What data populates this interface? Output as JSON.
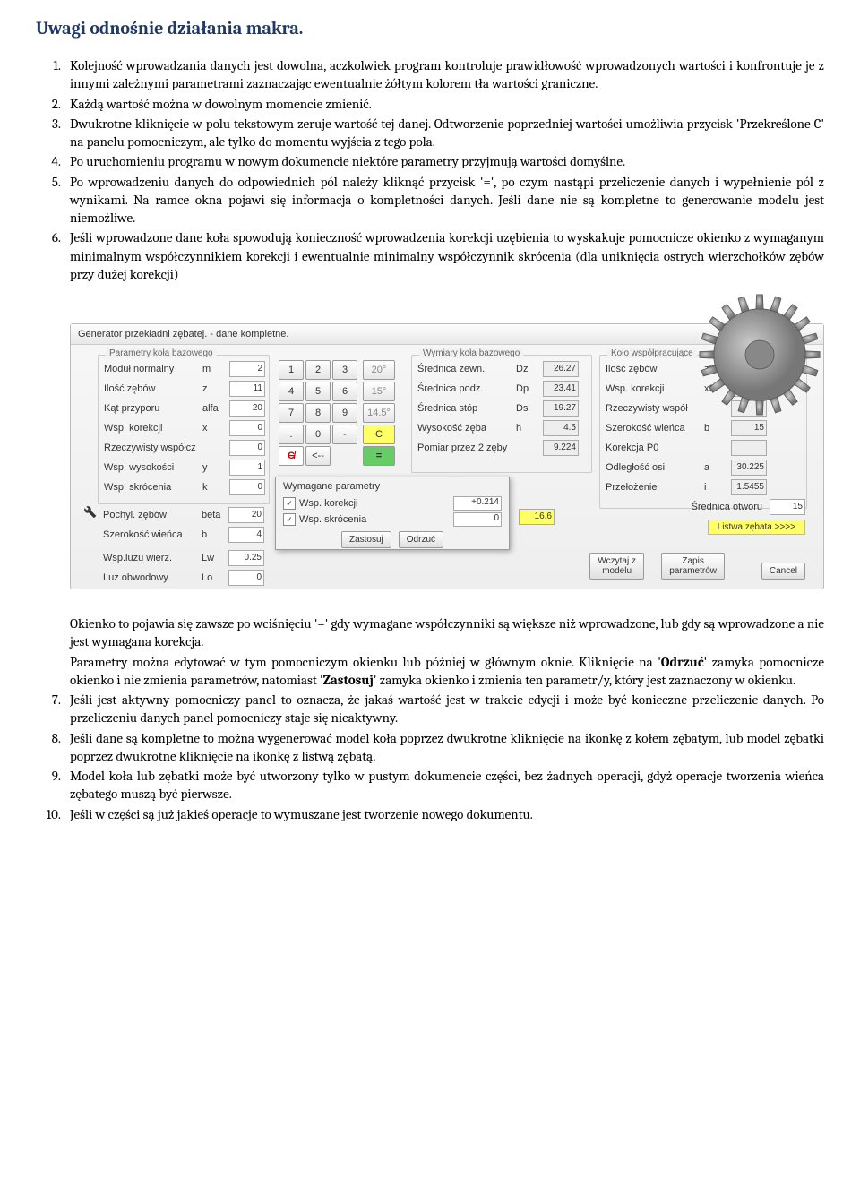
{
  "title": "Uwagi odnośnie działania makra.",
  "items": [
    "Kolejność wprowadzania danych jest dowolna, aczkolwiek program kontroluje prawidłowość wprowadzonych wartości i konfrontuje je z innymi zależnymi parametrami zaznaczając ewentualnie żółtym kolorem tła wartości graniczne.",
    "Każdą wartość można w dowolnym momencie zmienić.",
    "Dwukrotne kliknięcie w polu tekstowym zeruje wartość tej danej. Odtworzenie poprzedniej wartości umożliwia przycisk 'Przekreślone C' na panelu pomocniczym, ale tylko do momentu wyjścia z tego pola.",
    "Po uruchomieniu programu w nowym dokumencie niektóre parametry przyjmują wartości domyślne.",
    "Po wprowadzeniu danych do odpowiednich pól należy kliknąć przycisk '=', po czym nastąpi przeliczenie danych i wypełnienie pól z wynikami. Na ramce okna pojawi się informacja o kompletności danych. Jeśli dane nie są kompletne to generowanie modelu jest niemożliwe.",
    "Jeśli wprowadzone dane koła spowodują konieczność wprowadzenia korekcji uzębienia to wyskakuje pomocnicze okienko z wymaganym minimalnym współczynnikiem korekcji i ewentualnie minimalny współczynnik skrócenia (dla uniknięcia ostrych wierzchołków zębów przy dużej korekcji)"
  ],
  "mid_para1": "Okienko to pojawia się zawsze po wciśnięciu '=' gdy wymagane współczynniki są większe niż wprowadzone, lub gdy są wprowadzone a nie jest wymagana korekcja.",
  "mid_para2a": "Parametry można edytować w tym pomocniczym okienku lub później w głównym oknie. Kliknięcie na",
  "mid_para2b": "Odrzuć",
  "mid_para2c": "zamyka pomocnicze okienko i nie zmienia parametrów, natomiast",
  "mid_para2d": "Zastosuj",
  "mid_para2e": "zamyka okienko i zmienia ten parametr/y, który jest zaznaczony w okienku.",
  "items2": [
    "Jeśli jest aktywny pomocniczy panel to oznacza, że jakaś wartość jest w trakcie edycji i może być konieczne przeliczenie danych. Po przeliczeniu danych panel pomocniczy staje się nieaktywny.",
    "Jeśli dane są kompletne to można wygenerować model koła poprzez dwukrotne kliknięcie na ikonkę z kołem zębatym, lub model zębatki poprzez dwukrotne kliknięcie na ikonkę z listwą zębatą.",
    "Model koła lub zębatki może być utworzony tylko w pustym dokumencie części, bez żadnych operacji, gdyż operacje tworzenia wieńca zębatego muszą być pierwsze.",
    "Jeśli w części są już jakieś operacje to wymuszane jest tworzenie nowego dokumentu."
  ],
  "ui": {
    "window_title": "Generator przekładni zębatej. - dane kompletne.",
    "gb1": "Parametry koła bazowego",
    "gb2": "Wymiary koła bazowego",
    "gb3": "Koło współpracujące",
    "left_params": [
      {
        "l": "Moduł normalny",
        "s": "m",
        "v": "2"
      },
      {
        "l": "Ilość zębów",
        "s": "z",
        "v": "11"
      },
      {
        "l": "Kąt przyporu",
        "s": "alfa",
        "v": "20"
      },
      {
        "l": "Wsp. korekcji",
        "s": "x",
        "v": "0"
      },
      {
        "l": "Rzeczywisty współcz",
        "s": "",
        "v": "0"
      },
      {
        "l": "Wsp. wysokości",
        "s": "y",
        "v": "1"
      },
      {
        "l": "Wsp. skrócenia",
        "s": "k",
        "v": "0"
      }
    ],
    "left_params2": [
      {
        "l": "Pochyl. zębów",
        "s": "beta",
        "v": "20"
      },
      {
        "l": "Szerokość wieńca",
        "s": "b",
        "v": "4"
      }
    ],
    "left_params3": [
      {
        "l": "Wsp.luzu wierz.",
        "s": "Lw",
        "v": "0.25"
      },
      {
        "l": "Luz obwodowy",
        "s": "Lo",
        "v": "0"
      }
    ],
    "mid_params": [
      {
        "l": "Średnica zewn.",
        "s": "Dz",
        "v": "26.27"
      },
      {
        "l": "Średnica podz.",
        "s": "Dp",
        "v": "23.41"
      },
      {
        "l": "Średnica stóp",
        "s": "Ds",
        "v": "19.27"
      },
      {
        "l": "Wysokość zęba",
        "s": "h",
        "v": "4.5"
      },
      {
        "l": "Pomiar przez 2 zęby",
        "s": "",
        "v": "9.224"
      }
    ],
    "right_params": [
      {
        "l": "Ilość zębów",
        "s": "z2",
        "v": ""
      },
      {
        "l": "Wsp. korekcji",
        "s": "x2",
        "v": ""
      },
      {
        "l": "Rzeczywisty współ",
        "s": "",
        "v": ""
      },
      {
        "l": "Szerokość wieńca",
        "s": "b",
        "v": "15"
      },
      {
        "l": "Korekcja P0",
        "s": "",
        "v": ""
      },
      {
        "l": "Odległość osi",
        "s": "a",
        "v": "30.225"
      },
      {
        "l": "Przełożenie",
        "s": "i",
        "v": "1.5455"
      }
    ],
    "keypad_angles": [
      "20°",
      "15°",
      "14.5°"
    ],
    "highlight": "16.6",
    "sred_otworu": "Średnica otworu",
    "sred_otworu_v": "15",
    "listwa": "Listwa zębata >>>>",
    "popup_title": "Wymagane parametry",
    "popup_r1": "Wsp. korekcji",
    "popup_r1v": "+0.214",
    "popup_r2": "Wsp. skrócenia",
    "popup_r2v": "0",
    "zastosuj": "Zastosuj",
    "odrzuc": "Odrzuć",
    "wczytaj": "Wczytaj z\nmodelu",
    "zapis": "Zapis\nparametrów",
    "cancel": "Cancel"
  },
  "colors": {
    "title": "#1f3864",
    "highlight": "#ffff66"
  }
}
